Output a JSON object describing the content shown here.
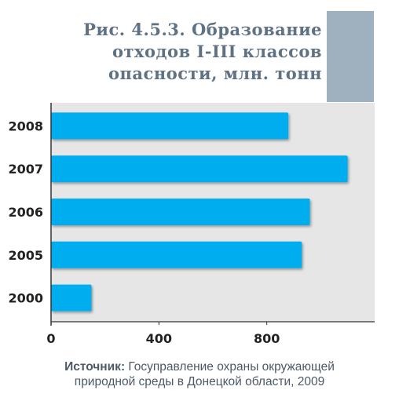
{
  "title_lines": [
    "Рис. 4.5.3. Образование",
    "отходов I-III классов",
    "опасности, млн. тонн"
  ],
  "source": {
    "label": "Источник:",
    "text_line1": "Госуправление охраны окружающей",
    "text_line2": "природной среды в Донецкой области, 2009"
  },
  "colors": {
    "bar": "#00aeef",
    "plot_background": "#e6e6e6",
    "accent": "#9fb0bf",
    "title": "#5f7284"
  },
  "chart_data": {
    "type": "bar",
    "orientation": "horizontal",
    "categories": [
      "2008",
      "2007",
      "2006",
      "2005",
      "2000"
    ],
    "values": [
      880,
      1100,
      960,
      930,
      150
    ],
    "xlim": [
      0,
      1200
    ],
    "xticks": [
      "0",
      "400",
      "800"
    ],
    "grid": false
  }
}
